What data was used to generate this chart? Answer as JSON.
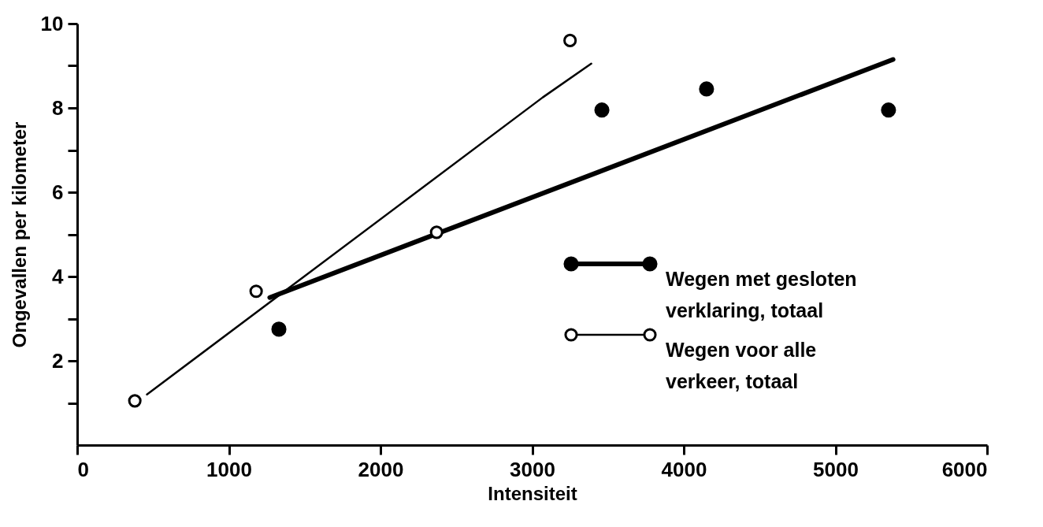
{
  "chart_data": {
    "type": "scatter",
    "xlabel": "Intensiteit",
    "ylabel": "Ongevallen per kilometer",
    "xlim": [
      0,
      6000
    ],
    "ylim": [
      0,
      10
    ],
    "xticks": [
      0,
      1000,
      2000,
      3000,
      4000,
      5000,
      6000
    ],
    "yticks": [
      {
        "value": 1,
        "label": null
      },
      2,
      {
        "value": 3,
        "label": null
      },
      4,
      {
        "value": 5,
        "label": null
      },
      6,
      {
        "value": 7,
        "label": null
      },
      8,
      {
        "value": 9,
        "label": null
      },
      10
    ],
    "grid": false,
    "legend": "right",
    "marker": "circle",
    "series": [
      {
        "type": "line",
        "marker": "none",
        "line_style": "solid",
        "color": "#000000",
        "x": [
          1270,
          5380
        ],
        "values": [
          3.5,
          9.15
        ]
      },
      {
        "type": "line",
        "marker": "none",
        "line_style": "solid",
        "color": "#000000",
        "x": [
          460,
          3070,
          3390
        ],
        "values": [
          1.2,
          8.25,
          9.05
        ]
      },
      {
        "name": "Wegen met gesloten verklaring, totaal",
        "color": "#000000",
        "x": [
          1330,
          3460,
          4150,
          5350
        ],
        "values": [
          2.75,
          7.95,
          8.45,
          7.95
        ]
      },
      {
        "name": "Wegen voor alle verkeer, totaal",
        "color": "#000000",
        "x": [
          380,
          1180,
          2370,
          3250
        ],
        "values": [
          1.05,
          3.65,
          5.05,
          9.6
        ]
      }
    ]
  }
}
